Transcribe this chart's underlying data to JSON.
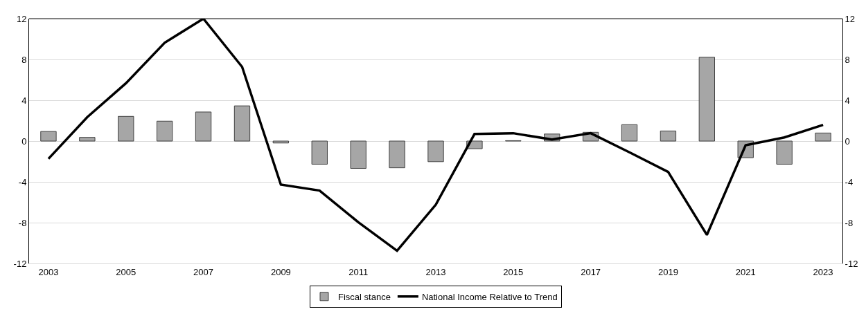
{
  "chart_data": {
    "type": "bar",
    "categories": [
      "2003",
      null,
      "2005",
      null,
      "2007",
      null,
      "2009",
      null,
      "2011",
      null,
      "2013",
      null,
      "2015",
      null,
      "2017",
      null,
      "2019",
      null,
      "2021",
      null,
      "2023"
    ],
    "series": [
      {
        "name": "Fiscal stance",
        "color": "#a6a6a6",
        "values": [
          0.94,
          0.36,
          2.42,
          1.95,
          2.85,
          3.45,
          -0.19,
          -2.27,
          -2.68,
          -2.62,
          -2.02,
          -0.75,
          0.04,
          0.69,
          0.86,
          1.61,
          0.99,
          8.22,
          -1.63,
          -2.27,
          0.79
        ]
      },
      {
        "name": "National Income Relative to Trend",
        "type": "line",
        "axis": "y2",
        "color": "#000000",
        "values": [
          -1.74,
          2.34,
          5.67,
          9.64,
          12,
          7.27,
          -4.27,
          -4.85,
          -7.96,
          -10.75,
          -6.24,
          0.69,
          0.77,
          0.15,
          0.77,
          -1.1,
          -3.03,
          -9.2,
          -0.41,
          0.36,
          1.59
        ]
      }
    ],
    "ylim": [
      -12,
      12
    ],
    "yticks": [
      -12,
      -8,
      -4,
      0,
      4,
      8,
      12
    ],
    "y2lim": [
      -12,
      12
    ],
    "y2ticks": [
      -12,
      -8,
      -4,
      0,
      4,
      8,
      12
    ],
    "grid": "y",
    "legend": "bottom",
    "marker": "none",
    "line_style": "solid"
  }
}
